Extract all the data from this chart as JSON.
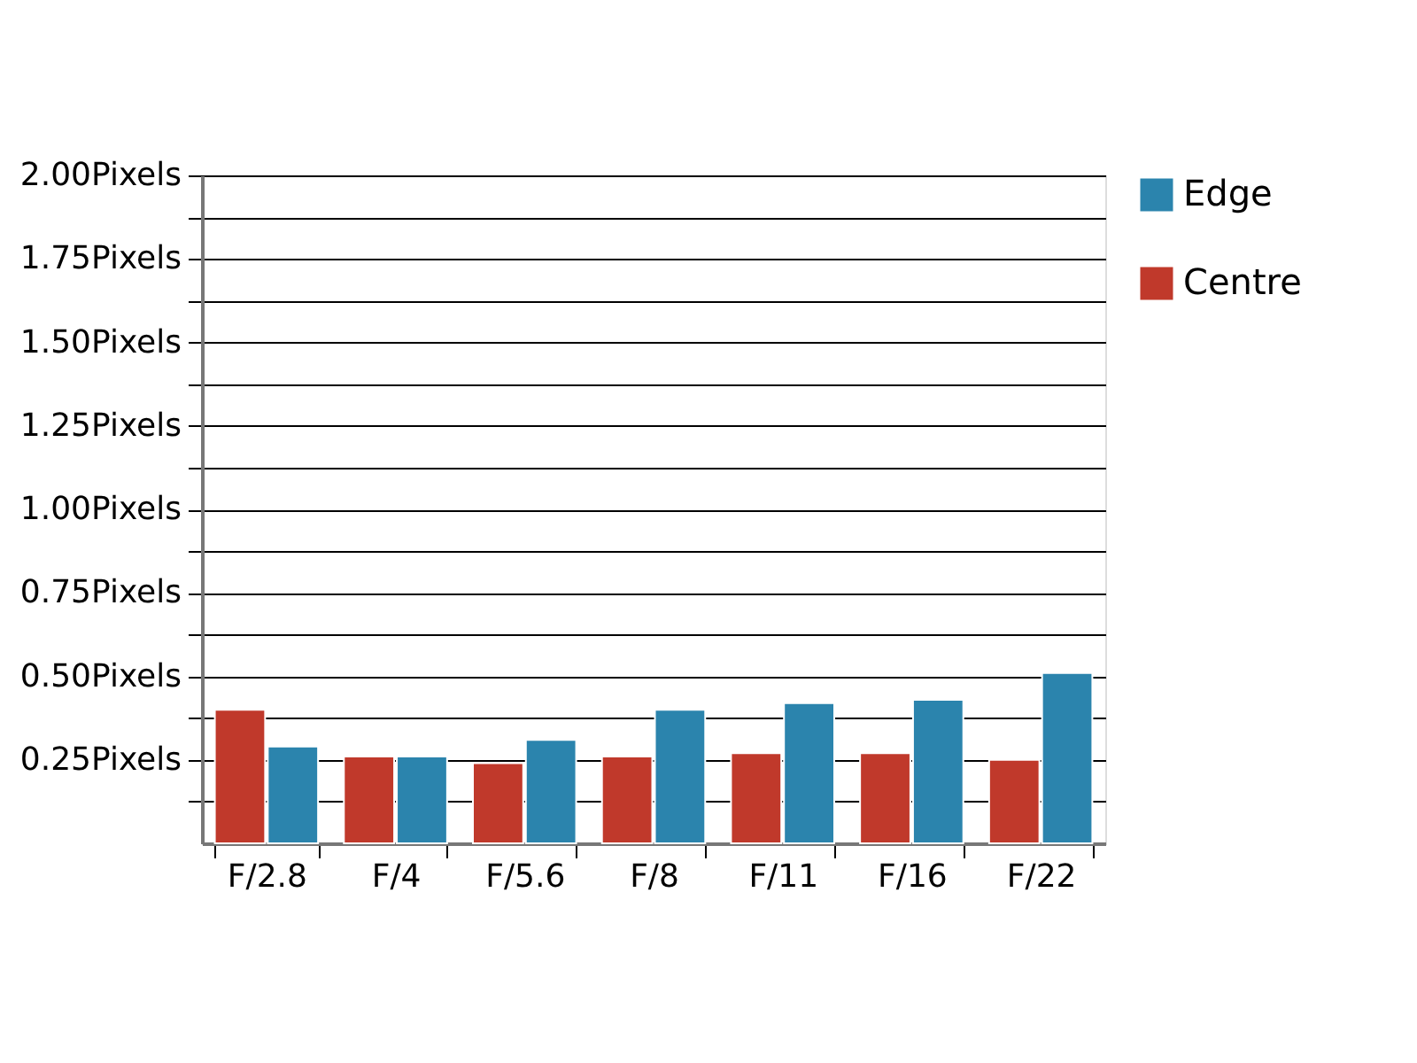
{
  "chart_data": {
    "type": "bar",
    "categories": [
      "F/2.8",
      "F/4",
      "F/5.6",
      "F/8",
      "F/11",
      "F/16",
      "F/22"
    ],
    "series": [
      {
        "name": "Centre",
        "color": "#c0392b",
        "values": [
          0.4,
          0.26,
          0.24,
          0.26,
          0.27,
          0.27,
          0.25
        ]
      },
      {
        "name": "Edge",
        "color": "#2b84ad",
        "values": [
          0.29,
          0.26,
          0.31,
          0.4,
          0.42,
          0.43,
          0.51
        ]
      }
    ],
    "ylim": [
      0,
      2.0
    ],
    "yticks": [
      {
        "value": 0.125,
        "label": null
      },
      {
        "value": 0.25,
        "label": "0.25Pixels"
      },
      {
        "value": 0.375,
        "label": null
      },
      {
        "value": 0.5,
        "label": "0.50Pixels"
      },
      {
        "value": 0.625,
        "label": null
      },
      {
        "value": 0.75,
        "label": "0.75Pixels"
      },
      {
        "value": 0.875,
        "label": null
      },
      {
        "value": 1.0,
        "label": "1.00Pixels"
      },
      {
        "value": 1.125,
        "label": null
      },
      {
        "value": 1.25,
        "label": "1.25Pixels"
      },
      {
        "value": 1.375,
        "label": null
      },
      {
        "value": 1.5,
        "label": "1.50Pixels"
      },
      {
        "value": 1.625,
        "label": null
      },
      {
        "value": 1.75,
        "label": "1.75Pixels"
      },
      {
        "value": 1.875,
        "label": null
      },
      {
        "value": 2.0,
        "label": "2.00Pixels"
      }
    ],
    "grid": "y",
    "legend": "top right"
  }
}
